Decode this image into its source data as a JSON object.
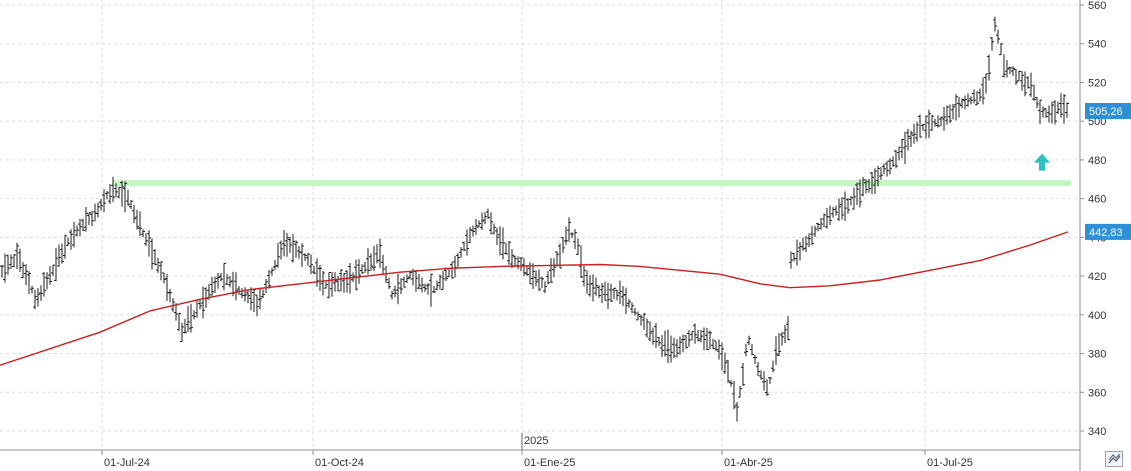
{
  "chart_data": {
    "type": "ohlc",
    "x_ticks": [
      "01-Jul-24",
      "01-Oct-24",
      "01-Ene-25",
      "01-Abr-25",
      "01-Jul-25"
    ],
    "year_marker": "2025",
    "y_ticks": [
      340,
      360,
      380,
      400,
      420,
      440,
      460,
      480,
      500,
      520,
      540,
      560
    ],
    "ylim": [
      330,
      565
    ],
    "grid": true,
    "resistance_level": 468,
    "last_price": 505.26,
    "last_price_label": "505,26",
    "moving_average_last": 442.83,
    "moving_average_label": "442,83",
    "moving_average": [
      {
        "t": 0,
        "v": 374
      },
      {
        "t": 100,
        "v": 391
      },
      {
        "t": 150,
        "v": 402
      },
      {
        "t": 200,
        "v": 408
      },
      {
        "t": 250,
        "v": 413
      },
      {
        "t": 300,
        "v": 416
      },
      {
        "t": 350,
        "v": 419
      },
      {
        "t": 400,
        "v": 422
      },
      {
        "t": 450,
        "v": 424
      },
      {
        "t": 500,
        "v": 425
      },
      {
        "t": 550,
        "v": 425.5
      },
      {
        "t": 600,
        "v": 426
      },
      {
        "t": 640,
        "v": 425
      },
      {
        "t": 680,
        "v": 423
      },
      {
        "t": 720,
        "v": 421
      },
      {
        "t": 760,
        "v": 416
      },
      {
        "t": 790,
        "v": 414
      },
      {
        "t": 830,
        "v": 415
      },
      {
        "t": 880,
        "v": 418
      },
      {
        "t": 930,
        "v": 423
      },
      {
        "t": 980,
        "v": 428
      },
      {
        "t": 1030,
        "v": 436
      },
      {
        "t": 1068,
        "v": 442.83
      }
    ],
    "price_path": [
      {
        "t": 0,
        "v": 422
      },
      {
        "t": 18,
        "v": 430
      },
      {
        "t": 36,
        "v": 408
      },
      {
        "t": 50,
        "v": 420
      },
      {
        "t": 70,
        "v": 440
      },
      {
        "t": 95,
        "v": 452
      },
      {
        "t": 113,
        "v": 466
      },
      {
        "t": 128,
        "v": 460
      },
      {
        "t": 145,
        "v": 440
      },
      {
        "t": 165,
        "v": 418
      },
      {
        "t": 182,
        "v": 392
      },
      {
        "t": 200,
        "v": 405
      },
      {
        "t": 222,
        "v": 420
      },
      {
        "t": 240,
        "v": 412
      },
      {
        "t": 258,
        "v": 405
      },
      {
        "t": 285,
        "v": 438
      },
      {
        "t": 305,
        "v": 430
      },
      {
        "t": 325,
        "v": 415
      },
      {
        "t": 350,
        "v": 418
      },
      {
        "t": 380,
        "v": 432
      },
      {
        "t": 392,
        "v": 410
      },
      {
        "t": 410,
        "v": 420
      },
      {
        "t": 432,
        "v": 412
      },
      {
        "t": 455,
        "v": 425
      },
      {
        "t": 470,
        "v": 442
      },
      {
        "t": 488,
        "v": 452
      },
      {
        "t": 500,
        "v": 438
      },
      {
        "t": 515,
        "v": 428
      },
      {
        "t": 530,
        "v": 422
      },
      {
        "t": 545,
        "v": 415
      },
      {
        "t": 560,
        "v": 432
      },
      {
        "t": 568,
        "v": 445
      },
      {
        "t": 578,
        "v": 435
      },
      {
        "t": 585,
        "v": 418
      },
      {
        "t": 600,
        "v": 412
      },
      {
        "t": 622,
        "v": 410
      },
      {
        "t": 640,
        "v": 398
      },
      {
        "t": 660,
        "v": 385
      },
      {
        "t": 675,
        "v": 382
      },
      {
        "t": 695,
        "v": 390
      },
      {
        "t": 715,
        "v": 385
      },
      {
        "t": 728,
        "v": 372
      },
      {
        "t": 737,
        "v": 350
      },
      {
        "t": 748,
        "v": 388
      },
      {
        "t": 758,
        "v": 372
      },
      {
        "t": 768,
        "v": 362
      },
      {
        "t": 778,
        "v": 384
      },
      {
        "t": 788,
        "v": 393
      },
      {
        "t": 791,
        "v": 428
      },
      {
        "t": 810,
        "v": 440
      },
      {
        "t": 830,
        "v": 452
      },
      {
        "t": 850,
        "v": 458
      },
      {
        "t": 870,
        "v": 468
      },
      {
        "t": 895,
        "v": 480
      },
      {
        "t": 918,
        "v": 496
      },
      {
        "t": 940,
        "v": 500
      },
      {
        "t": 960,
        "v": 508
      },
      {
        "t": 985,
        "v": 515
      },
      {
        "t": 995,
        "v": 550
      },
      {
        "t": 1005,
        "v": 528
      },
      {
        "t": 1022,
        "v": 522
      },
      {
        "t": 1032,
        "v": 518
      },
      {
        "t": 1040,
        "v": 505
      },
      {
        "t": 1050,
        "v": 503
      },
      {
        "t": 1060,
        "v": 508
      },
      {
        "t": 1068,
        "v": 505
      }
    ],
    "price_gaps": [
      [
        788,
        791
      ]
    ],
    "colors": {
      "bars": "#1c1c1c",
      "moving_average": "#cc1f1f",
      "resistance": "#c6f5c4",
      "last_price_badge": "#2d8fd5",
      "ma_badge": "#2d8fd5",
      "signal_arrow": "#2fc0c0",
      "grid": "#d9dde3"
    }
  },
  "signal": {
    "icon": "up-arrow-icon",
    "direction": "up"
  },
  "corner_control": {
    "icon": "chart-settings-icon"
  }
}
